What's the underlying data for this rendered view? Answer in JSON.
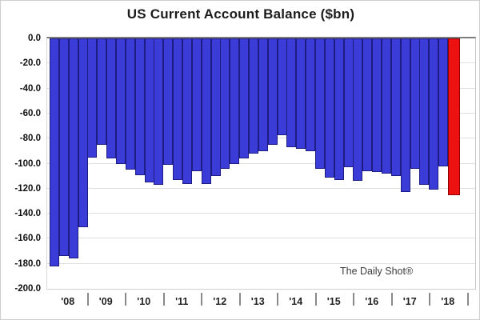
{
  "title": "US Current Account Balance ($bn)",
  "annotation": "The Daily Shot®",
  "y_axis": {
    "ticks": [
      "0.0",
      "-20.0",
      "-40.0",
      "-60.0",
      "-80.0",
      "-100.0",
      "-120.0",
      "-140.0",
      "-160.0",
      "-180.0",
      "-200.0"
    ]
  },
  "x_axis": {
    "years": [
      "'08",
      "'09",
      "'10",
      "'11",
      "'12",
      "'13",
      "'14",
      "'15",
      "'16",
      "'17",
      "'18"
    ]
  },
  "chart_data": {
    "type": "bar",
    "title": "US Current Account Balance ($bn)",
    "xlabel": "",
    "ylabel": "",
    "unit": "$bn",
    "ylim": [
      -200,
      0
    ],
    "ytick_step": 20,
    "grid": true,
    "frequency": "quarterly",
    "categories": [
      "'08",
      "'09",
      "'10",
      "'11",
      "'12",
      "'13",
      "'14",
      "'15",
      "'16",
      "'17",
      "'18"
    ],
    "series": [
      {
        "year": "'08",
        "values": [
          -182,
          -174,
          -176,
          -151
        ]
      },
      {
        "year": "'09",
        "values": [
          -95,
          -85,
          -96,
          -100
        ]
      },
      {
        "year": "'10",
        "values": [
          -105,
          -109,
          -115,
          -117
        ]
      },
      {
        "year": "'11",
        "values": [
          -101,
          -113,
          -116,
          -106
        ]
      },
      {
        "year": "'12",
        "values": [
          -116,
          -110,
          -104,
          -100
        ]
      },
      {
        "year": "'13",
        "values": [
          -96,
          -92,
          -90,
          -85
        ]
      },
      {
        "year": "'14",
        "values": [
          -77,
          -87,
          -88,
          -90
        ]
      },
      {
        "year": "'15",
        "values": [
          -104,
          -111,
          -113,
          -103
        ]
      },
      {
        "year": "'16",
        "values": [
          -114,
          -106,
          -107,
          -108
        ]
      },
      {
        "year": "'17",
        "values": [
          -110,
          -123,
          -104,
          -117
        ]
      },
      {
        "year": "'18",
        "values": [
          -121,
          -102,
          -125
        ]
      }
    ],
    "highlight_last_bar": true,
    "colors": {
      "bar_fill": "#3b3bd8",
      "bar_border": "#1c1c82",
      "highlight_fill": "#ee1111",
      "highlight_border": "#8f0000",
      "zero_line": "#7d7d7d",
      "gridline": "#e0e0e0"
    }
  }
}
